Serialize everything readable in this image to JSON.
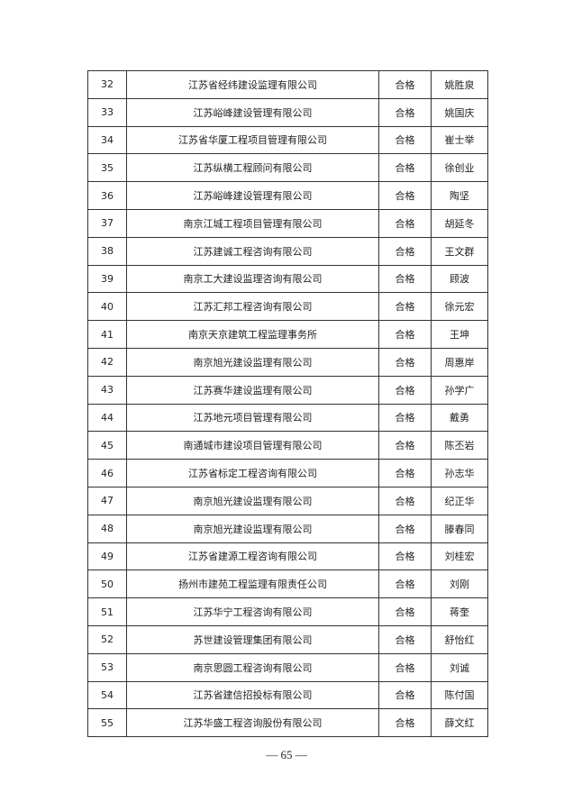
{
  "rows": [
    {
      "no": "32",
      "company": "江苏省经纬建设监理有限公司",
      "result": "合格",
      "name": "姚胜泉"
    },
    {
      "no": "33",
      "company": "江苏峪峰建设管理有限公司",
      "result": "合格",
      "name": "姚国庆"
    },
    {
      "no": "34",
      "company": "江苏省华厦工程项目管理有限公司",
      "result": "合格",
      "name": "崔士举"
    },
    {
      "no": "35",
      "company": "江苏纵横工程顾问有限公司",
      "result": "合格",
      "name": "徐创业"
    },
    {
      "no": "36",
      "company": "江苏峪峰建设管理有限公司",
      "result": "合格",
      "name": "陶坚"
    },
    {
      "no": "37",
      "company": "南京江城工程项目管理有限公司",
      "result": "合格",
      "name": "胡延冬"
    },
    {
      "no": "38",
      "company": "江苏建诚工程咨询有限公司",
      "result": "合格",
      "name": "王文群"
    },
    {
      "no": "39",
      "company": "南京工大建设监理咨询有限公司",
      "result": "合格",
      "name": "顾波"
    },
    {
      "no": "40",
      "company": "江苏汇邦工程咨询有限公司",
      "result": "合格",
      "name": "徐元宏"
    },
    {
      "no": "41",
      "company": "南京天京建筑工程监理事务所",
      "result": "合格",
      "name": "王坤"
    },
    {
      "no": "42",
      "company": "南京旭光建设监理有限公司",
      "result": "合格",
      "name": "周惠岸"
    },
    {
      "no": "43",
      "company": "江苏赛华建设监理有限公司",
      "result": "合格",
      "name": "孙学广"
    },
    {
      "no": "44",
      "company": "江苏地元项目管理有限公司",
      "result": "合格",
      "name": "戴勇"
    },
    {
      "no": "45",
      "company": "南通城市建设项目管理有限公司",
      "result": "合格",
      "name": "陈丕岩"
    },
    {
      "no": "46",
      "company": "江苏省标定工程咨询有限公司",
      "result": "合格",
      "name": "孙志华"
    },
    {
      "no": "47",
      "company": "南京旭光建设监理有限公司",
      "result": "合格",
      "name": "纪正华"
    },
    {
      "no": "48",
      "company": "南京旭光建设监理有限公司",
      "result": "合格",
      "name": "滕春同"
    },
    {
      "no": "49",
      "company": "江苏省建源工程咨询有限公司",
      "result": "合格",
      "name": "刘桂宏"
    },
    {
      "no": "50",
      "company": "扬州市建苑工程监理有限责任公司",
      "result": "合格",
      "name": "刘刚"
    },
    {
      "no": "51",
      "company": "江苏华宁工程咨询有限公司",
      "result": "合格",
      "name": "蒋奎"
    },
    {
      "no": "52",
      "company": "苏世建设管理集团有限公司",
      "result": "合格",
      "name": "舒怡红"
    },
    {
      "no": "53",
      "company": "南京思圆工程咨询有限公司",
      "result": "合格",
      "name": "刘诚"
    },
    {
      "no": "54",
      "company": "江苏省建信招投标有限公司",
      "result": "合格",
      "name": "陈付国"
    },
    {
      "no": "55",
      "company": "江苏华盛工程咨询股份有限公司",
      "result": "合格",
      "name": "薛文红"
    }
  ],
  "footer": {
    "page": "— 65 —"
  }
}
